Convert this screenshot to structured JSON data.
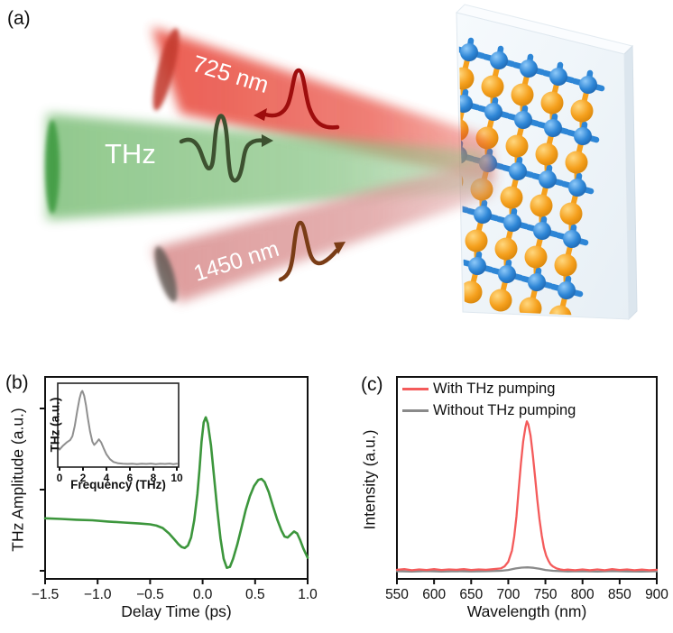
{
  "panel_a": {
    "label": "(a)",
    "labels": {
      "top_beam": "725 nm",
      "middle_beam": "THz",
      "bottom_beam": "1450 nm"
    },
    "colors": {
      "top_beam": "#e8473a",
      "top_beam_cap": "#c23b2e",
      "top_pulse": "#9e0d0d",
      "middle_beam": "#82c17e",
      "middle_beam_cap": "#3f9b43",
      "middle_pulse": "#3d5130",
      "bottom_beam": "#d98e8e",
      "bottom_beam_cap": "#5c5450",
      "bottom_pulse": "#7a3c16",
      "atom_blue": "#2e86d6",
      "atom_orange": "#f5a01d"
    }
  },
  "panel_b": {
    "label": "(b)"
  },
  "panel_c": {
    "label": "(c)"
  },
  "chart_data": [
    {
      "id": "thz-waveform",
      "type": "line",
      "xlabel": "Delay Time (ps)",
      "ylabel": "THz Amplitude (a.u.)",
      "xlim": [
        -1.5,
        1.0
      ],
      "ylim": [
        0,
        1
      ],
      "y_units": "normalized (a.u.)",
      "xticks": [
        -1.5,
        -1.0,
        -0.5,
        0.0,
        0.5,
        1.0
      ],
      "xtick_labels": [
        "−1.5",
        "−1.0",
        "−0.5",
        "0.0",
        "0.5",
        "1.0"
      ],
      "grid": false,
      "color": "#3c963c",
      "points": [
        [
          -1.5,
          0.3
        ],
        [
          -1.35,
          0.297
        ],
        [
          -1.2,
          0.293
        ],
        [
          -1.05,
          0.29
        ],
        [
          -0.9,
          0.284
        ],
        [
          -0.75,
          0.279
        ],
        [
          -0.6,
          0.274
        ],
        [
          -0.5,
          0.27
        ],
        [
          -0.44,
          0.264
        ],
        [
          -0.38,
          0.252
        ],
        [
          -0.32,
          0.225
        ],
        [
          -0.27,
          0.196
        ],
        [
          -0.23,
          0.172
        ],
        [
          -0.2,
          0.158
        ],
        [
          -0.17,
          0.153
        ],
        [
          -0.14,
          0.165
        ],
        [
          -0.11,
          0.205
        ],
        [
          -0.08,
          0.29
        ],
        [
          -0.05,
          0.42
        ],
        [
          -0.03,
          0.54
        ],
        [
          -0.01,
          0.68
        ],
        [
          0.01,
          0.775
        ],
        [
          0.03,
          0.8
        ],
        [
          0.05,
          0.77
        ],
        [
          0.08,
          0.66
        ],
        [
          0.11,
          0.5
        ],
        [
          0.14,
          0.34
        ],
        [
          0.17,
          0.2
        ],
        [
          0.2,
          0.1
        ],
        [
          0.23,
          0.055
        ],
        [
          0.26,
          0.06
        ],
        [
          0.29,
          0.1
        ],
        [
          0.33,
          0.17
        ],
        [
          0.37,
          0.255
        ],
        [
          0.41,
          0.34
        ],
        [
          0.45,
          0.41
        ],
        [
          0.49,
          0.46
        ],
        [
          0.53,
          0.49
        ],
        [
          0.56,
          0.495
        ],
        [
          0.59,
          0.48
        ],
        [
          0.63,
          0.43
        ],
        [
          0.67,
          0.36
        ],
        [
          0.71,
          0.295
        ],
        [
          0.75,
          0.24
        ],
        [
          0.78,
          0.21
        ],
        [
          0.81,
          0.205
        ],
        [
          0.84,
          0.22
        ],
        [
          0.87,
          0.235
        ],
        [
          0.9,
          0.225
        ],
        [
          0.93,
          0.19
        ],
        [
          0.96,
          0.15
        ],
        [
          1.0,
          0.105
        ]
      ]
    },
    {
      "id": "thz-spectrum-inset",
      "type": "line",
      "xlabel": "Frequency (THz)",
      "ylabel": "THz (a.u.)",
      "xlim": [
        0,
        10
      ],
      "ylim": [
        0,
        1
      ],
      "y_units": "normalized (a.u.)",
      "xticks": [
        0,
        2,
        4,
        6,
        8,
        10
      ],
      "xtick_labels": [
        "0",
        "2",
        "4",
        "6",
        "8",
        "10"
      ],
      "grid": false,
      "color": "#8f8f8f",
      "points": [
        [
          0,
          0.22
        ],
        [
          0.3,
          0.27
        ],
        [
          0.6,
          0.31
        ],
        [
          0.9,
          0.34
        ],
        [
          1.1,
          0.39
        ],
        [
          1.3,
          0.52
        ],
        [
          1.5,
          0.7
        ],
        [
          1.7,
          0.86
        ],
        [
          1.85,
          0.94
        ],
        [
          1.95,
          0.96
        ],
        [
          2.1,
          0.9
        ],
        [
          2.25,
          0.78
        ],
        [
          2.4,
          0.63
        ],
        [
          2.6,
          0.45
        ],
        [
          2.8,
          0.32
        ],
        [
          2.95,
          0.28
        ],
        [
          3.15,
          0.31
        ],
        [
          3.35,
          0.35
        ],
        [
          3.55,
          0.31
        ],
        [
          3.75,
          0.24
        ],
        [
          4.0,
          0.16
        ],
        [
          4.3,
          0.1
        ],
        [
          4.6,
          0.065
        ],
        [
          5.0,
          0.048
        ],
        [
          5.4,
          0.042
        ],
        [
          5.8,
          0.04
        ],
        [
          6.2,
          0.043
        ],
        [
          6.6,
          0.038
        ],
        [
          7.0,
          0.042
        ],
        [
          7.4,
          0.04
        ],
        [
          7.8,
          0.044
        ],
        [
          8.2,
          0.038
        ],
        [
          8.6,
          0.042
        ],
        [
          9.0,
          0.04
        ],
        [
          9.4,
          0.044
        ],
        [
          9.7,
          0.038
        ],
        [
          10,
          0.042
        ]
      ]
    },
    {
      "id": "emission-spectrum",
      "type": "line",
      "xlabel": "Wavelength (nm)",
      "ylabel": "Intensity (a.u.)",
      "xlim": [
        550,
        900
      ],
      "ylim": [
        0,
        1
      ],
      "y_units": "normalized (a.u.)",
      "xticks": [
        550,
        600,
        650,
        700,
        750,
        800,
        850,
        900
      ],
      "xtick_labels": [
        "550",
        "600",
        "650",
        "700",
        "750",
        "800",
        "850",
        "900"
      ],
      "grid": false,
      "legend_position": "top-left",
      "series": [
        {
          "name": "With THz pumping",
          "color": "#f45b5b",
          "peak_nm": 725,
          "points": [
            [
              550,
              0.045
            ],
            [
              560,
              0.048
            ],
            [
              570,
              0.043
            ],
            [
              580,
              0.047
            ],
            [
              590,
              0.044
            ],
            [
              600,
              0.048
            ],
            [
              610,
              0.044
            ],
            [
              620,
              0.047
            ],
            [
              630,
              0.045
            ],
            [
              640,
              0.048
            ],
            [
              650,
              0.044
            ],
            [
              660,
              0.047
            ],
            [
              670,
              0.045
            ],
            [
              680,
              0.048
            ],
            [
              690,
              0.052
            ],
            [
              695,
              0.062
            ],
            [
              700,
              0.085
            ],
            [
              705,
              0.14
            ],
            [
              708,
              0.21
            ],
            [
              711,
              0.31
            ],
            [
              714,
              0.44
            ],
            [
              717,
              0.57
            ],
            [
              720,
              0.68
            ],
            [
              723,
              0.75
            ],
            [
              725,
              0.78
            ],
            [
              727,
              0.765
            ],
            [
              730,
              0.71
            ],
            [
              733,
              0.615
            ],
            [
              736,
              0.505
            ],
            [
              739,
              0.395
            ],
            [
              742,
              0.295
            ],
            [
              745,
              0.215
            ],
            [
              748,
              0.155
            ],
            [
              751,
              0.115
            ],
            [
              754,
              0.09
            ],
            [
              757,
              0.072
            ],
            [
              760,
              0.062
            ],
            [
              765,
              0.052
            ],
            [
              770,
              0.047
            ],
            [
              775,
              0.044
            ],
            [
              780,
              0.046
            ],
            [
              790,
              0.043
            ],
            [
              800,
              0.047
            ],
            [
              810,
              0.043
            ],
            [
              820,
              0.047
            ],
            [
              830,
              0.043
            ],
            [
              840,
              0.048
            ],
            [
              850,
              0.044
            ],
            [
              860,
              0.047
            ],
            [
              870,
              0.043
            ],
            [
              880,
              0.046
            ],
            [
              890,
              0.043
            ],
            [
              900,
              0.045
            ]
          ]
        },
        {
          "name": "Without THz pumping",
          "color": "#8a8a8a",
          "points": [
            [
              550,
              0.038
            ],
            [
              570,
              0.036
            ],
            [
              590,
              0.039
            ],
            [
              610,
              0.036
            ],
            [
              630,
              0.038
            ],
            [
              650,
              0.037
            ],
            [
              670,
              0.038
            ],
            [
              690,
              0.04
            ],
            [
              700,
              0.044
            ],
            [
              710,
              0.052
            ],
            [
              718,
              0.056
            ],
            [
              726,
              0.057
            ],
            [
              734,
              0.055
            ],
            [
              742,
              0.05
            ],
            [
              750,
              0.044
            ],
            [
              760,
              0.04
            ],
            [
              780,
              0.037
            ],
            [
              800,
              0.038
            ],
            [
              820,
              0.036
            ],
            [
              840,
              0.039
            ],
            [
              860,
              0.037
            ],
            [
              880,
              0.036
            ],
            [
              900,
              0.038
            ]
          ]
        }
      ]
    }
  ]
}
